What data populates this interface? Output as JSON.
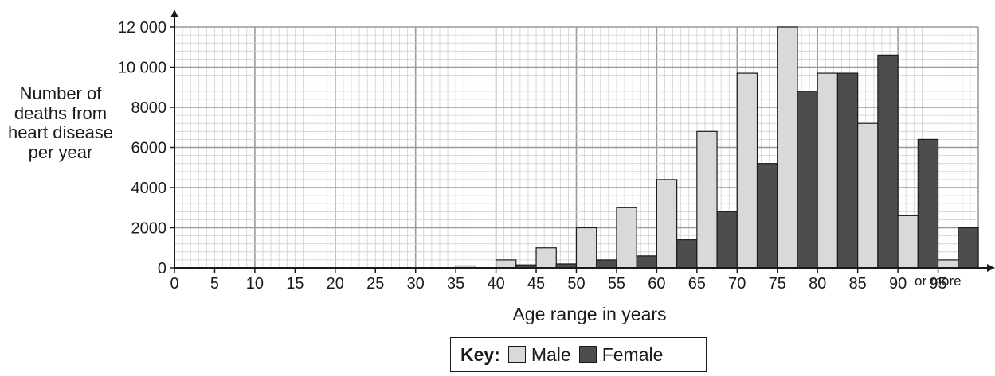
{
  "chart_data": {
    "type": "bar",
    "xlabel": "Age range in years",
    "ylabel": "Number of deaths from heart disease per year",
    "ylim": [
      0,
      12000
    ],
    "xlim": [
      0,
      100
    ],
    "x_ticks": [
      "0",
      "5",
      "10",
      "15",
      "20",
      "25",
      "30",
      "35",
      "40",
      "45",
      "50",
      "55",
      "60",
      "65",
      "70",
      "75",
      "80",
      "85",
      "90",
      "95"
    ],
    "y_ticks": [
      "0",
      "2000",
      "4000",
      "6000",
      "8000",
      "10 000",
      "12 000"
    ],
    "x_note": "or more",
    "grid": true,
    "categories": [
      "35",
      "40",
      "45",
      "50",
      "55",
      "60",
      "65",
      "70",
      "75",
      "80",
      "85",
      "90",
      "95"
    ],
    "series": [
      {
        "name": "Male",
        "color": "#d9d9d9",
        "values": [
          100,
          400,
          1000,
          2000,
          3000,
          4400,
          6800,
          9700,
          12000,
          9700,
          7200,
          2600,
          400
        ]
      },
      {
        "name": "Female",
        "color": "#4d4d4d",
        "values": [
          0,
          150,
          200,
          400,
          600,
          1400,
          2800,
          5200,
          8800,
          9700,
          10600,
          6400,
          2000
        ]
      }
    ],
    "legend": {
      "title": "Key:",
      "placement": "bottom-center"
    }
  }
}
